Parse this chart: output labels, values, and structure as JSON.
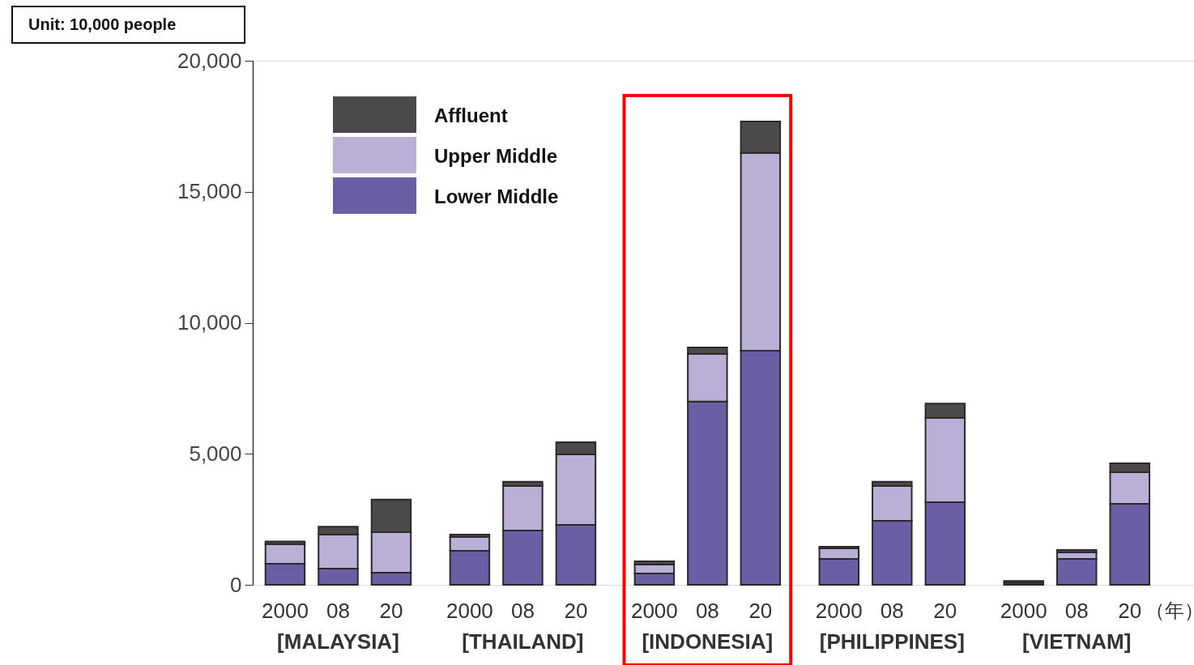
{
  "chart_data": {
    "type": "bar",
    "stacked": true,
    "categories": [
      "2000",
      "08",
      "20",
      "2000",
      "08",
      "20",
      "2000",
      "08",
      "20",
      "2000",
      "08",
      "20",
      "2000",
      "08",
      "20"
    ],
    "series": [
      {
        "name": "Lower Middle",
        "color": "#6b5ea5",
        "values": [
          800,
          620,
          460,
          1300,
          2070,
          2290,
          430,
          6990,
          8930,
          990,
          2440,
          3150,
          80,
          990,
          3090
        ]
      },
      {
        "name": "Upper Middle",
        "color": "#baafd4",
        "values": [
          750,
          1300,
          1550,
          520,
          1700,
          2690,
          340,
          1820,
          7550,
          400,
          1330,
          3220,
          null,
          250,
          1210
        ]
      },
      {
        "name": "Affluent",
        "color": "#4a4a4a",
        "values": [
          100,
          300,
          1240,
          100,
          160,
          460,
          130,
          250,
          1200,
          60,
          160,
          550,
          70,
          90,
          340
        ]
      }
    ],
    "ylim": [
      0,
      20000
    ],
    "yticks": [
      0,
      {
        "value": 5000,
        "label": "5,000"
      },
      {
        "value": 10000,
        "label": "10,000"
      },
      {
        "value": 15000,
        "label": "15,000"
      },
      {
        "value": 20000,
        "label": "20,000"
      }
    ],
    "legend": "top left",
    "grid": false,
    "annotations": [
      "Unit: 10,000 people",
      "[MALAYSIA]",
      "[THAILAND]",
      "[INDONESIA]",
      "[PHILIPPINES]",
      "[VIETNAM]",
      "（年）"
    ]
  }
}
